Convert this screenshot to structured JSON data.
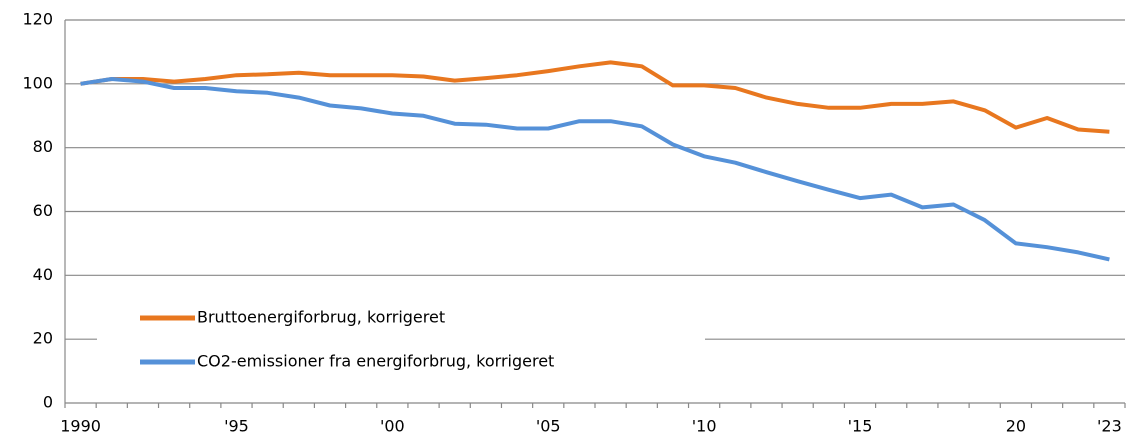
{
  "chart_data": {
    "type": "line",
    "categories": [
      "1990",
      null,
      null,
      null,
      null,
      "'95",
      null,
      null,
      null,
      null,
      "'00",
      null,
      null,
      null,
      null,
      "'05",
      null,
      null,
      null,
      null,
      "'10",
      null,
      null,
      null,
      null,
      "'15",
      null,
      null,
      null,
      null,
      "20",
      null,
      null,
      "'23"
    ],
    "series": [
      {
        "name": "Bruttoenergiforbrug, korrigeret",
        "color": "#e8771f",
        "values": [
          100,
          101.5,
          101.5,
          100.7,
          101.5,
          102.7,
          103,
          103.5,
          102.7,
          102.7,
          102.7,
          102.3,
          101,
          101.8,
          102.7,
          104,
          105.5,
          106.7,
          105.5,
          99.5,
          99.5,
          98.7,
          95.7,
          93.7,
          92.5,
          92.5,
          93.7,
          93.7,
          94.5,
          91.7,
          86.3,
          89.3,
          85.7,
          85
        ]
      },
      {
        "name": "CO2-emissioner fra energiforbrug, korrigeret",
        "color": "#5591d8",
        "values": [
          100,
          101.5,
          100.7,
          98.7,
          98.7,
          97.7,
          97.2,
          95.7,
          93.2,
          92.3,
          90.7,
          90,
          87.5,
          87.2,
          86,
          86,
          88.3,
          88.3,
          86.7,
          81,
          77.3,
          75.3,
          72.3,
          69.5,
          66.8,
          64.2,
          65.3,
          61.3,
          62.2,
          57.3,
          50,
          48.8,
          47.2,
          45
        ]
      }
    ],
    "ylim": [
      0,
      120
    ],
    "yticks": [
      0,
      20,
      40,
      60,
      80,
      100,
      120
    ],
    "grid": true,
    "legend": "lower left"
  }
}
